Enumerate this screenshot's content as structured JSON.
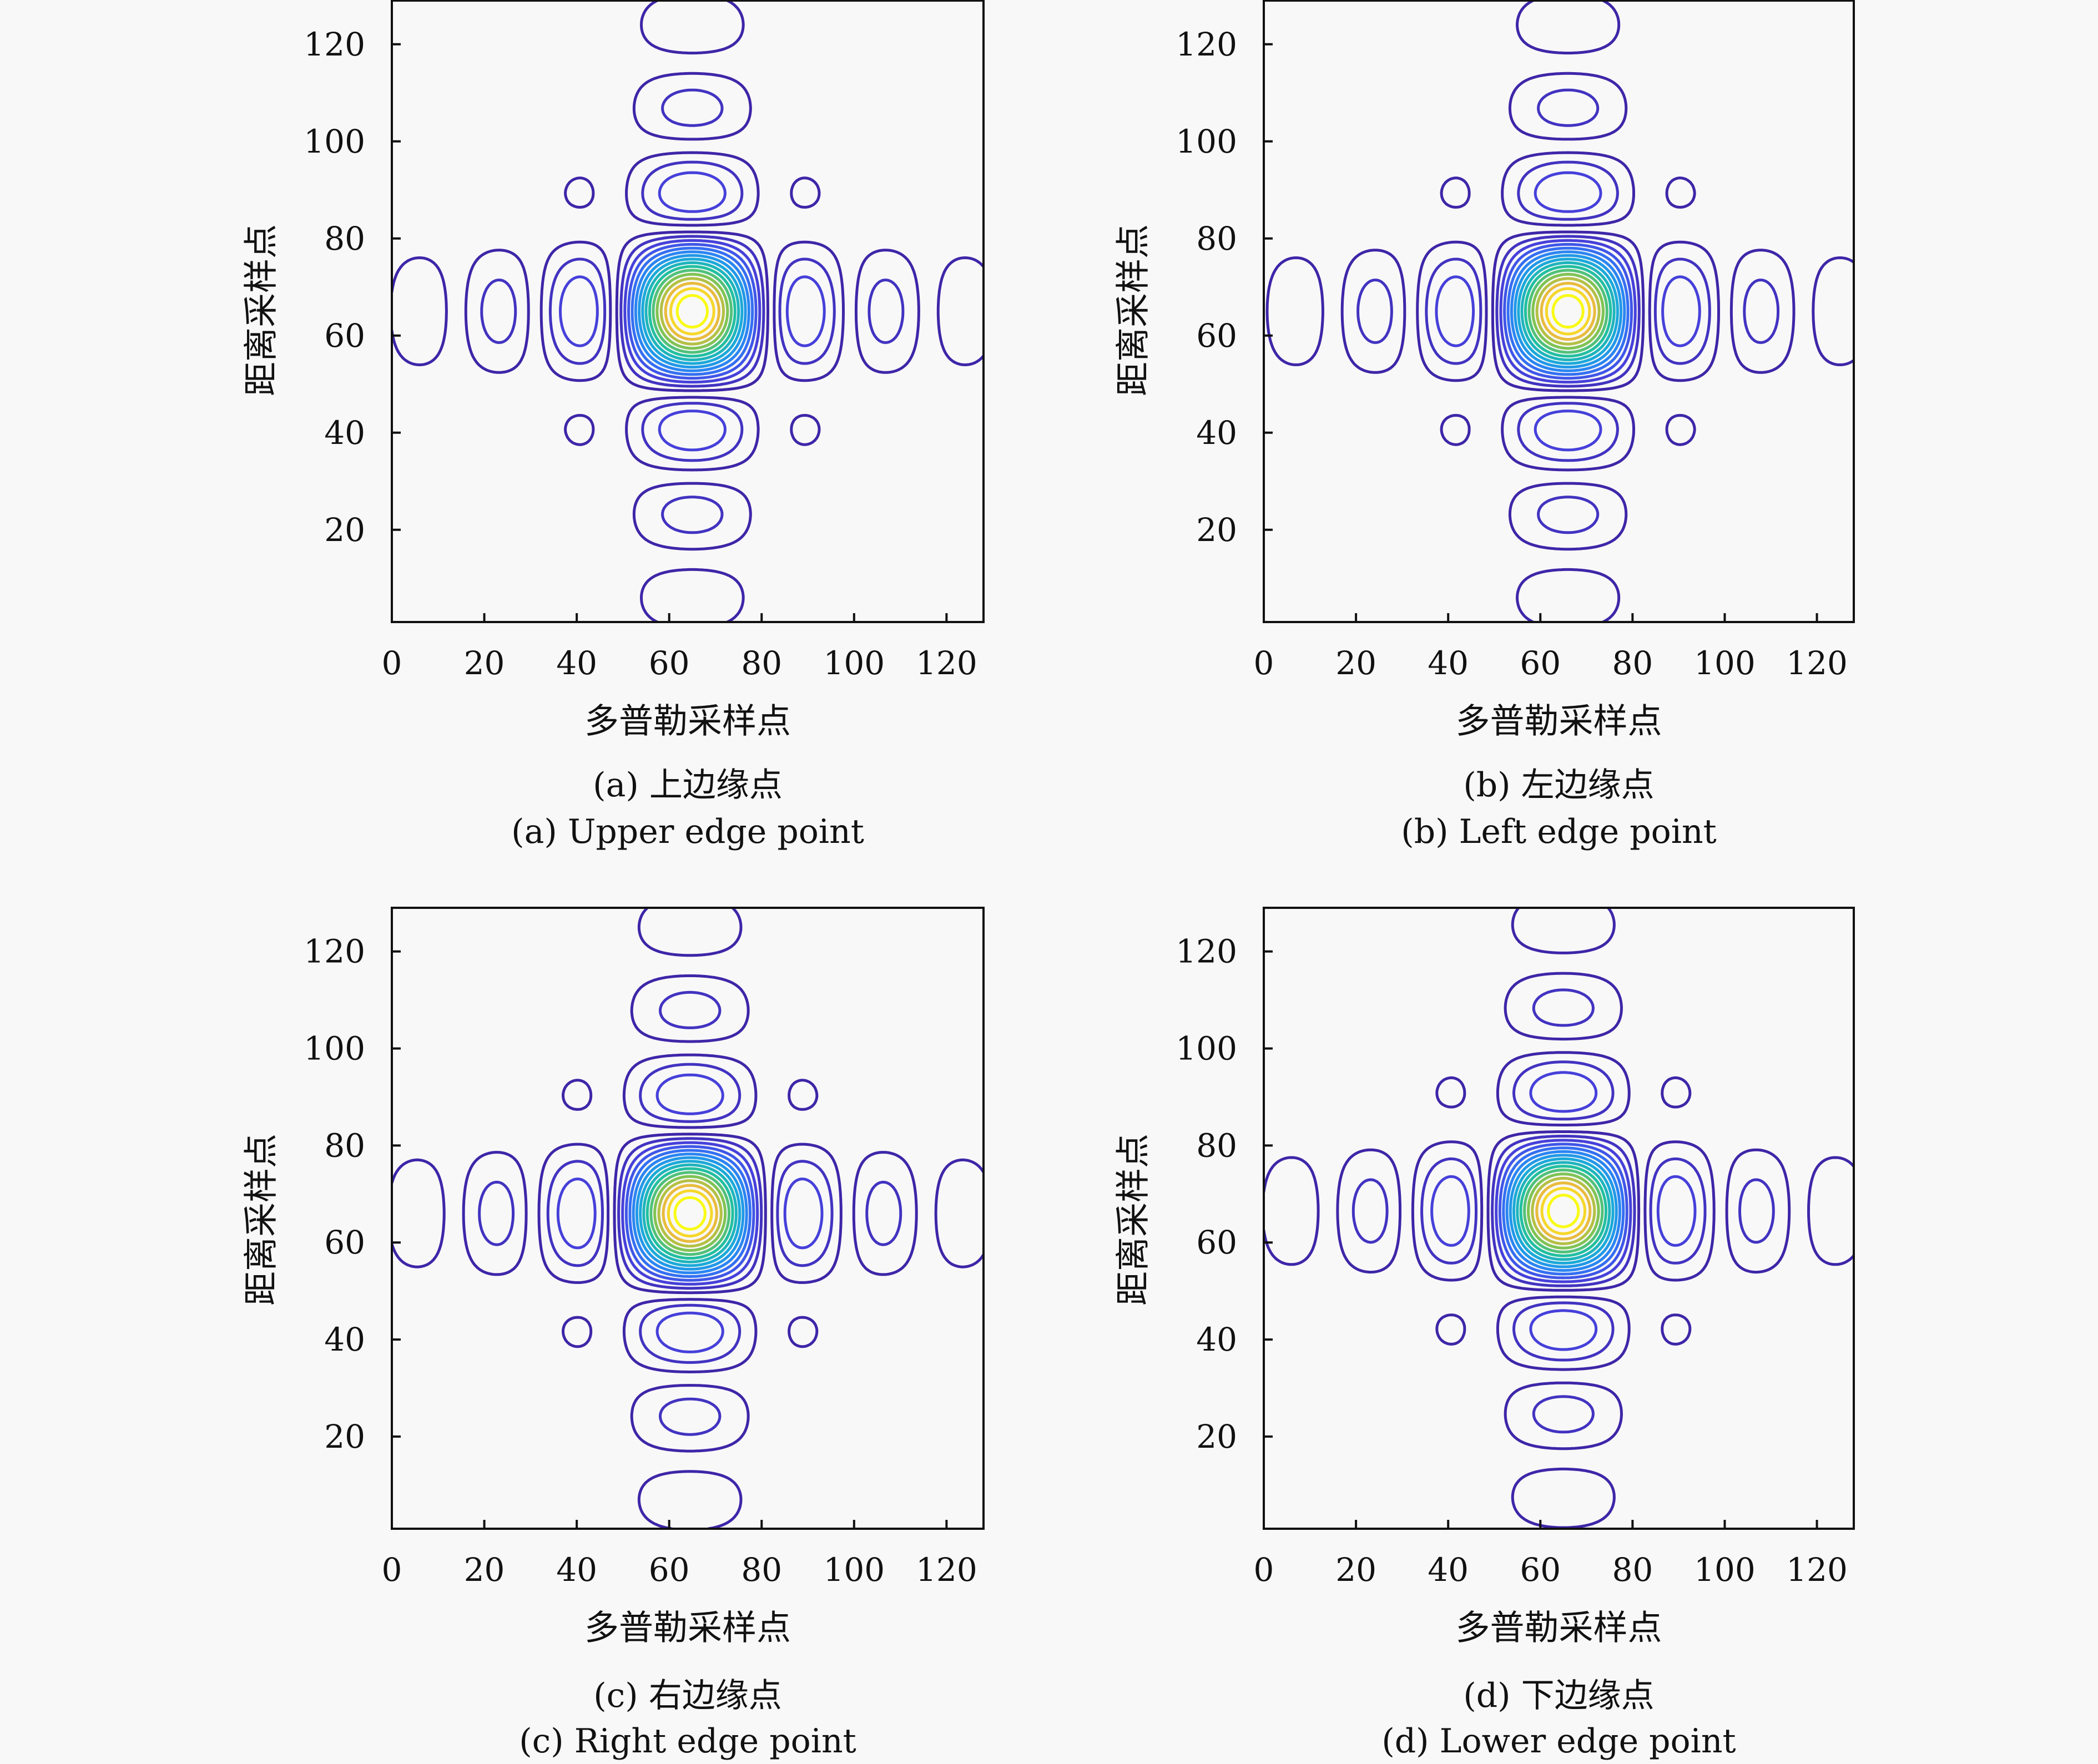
{
  "colormap": "parula",
  "chart_data": [
    {
      "type": "contour",
      "caption_zh": "(a) 上边缘点",
      "caption_en": "(a) Upper edge point",
      "xlabel": "多普勒采样点",
      "ylabel": "距离采样点",
      "xlim": [
        0,
        128
      ],
      "ylim": [
        1,
        129
      ],
      "xticks": [
        "0",
        "20",
        "40",
        "60",
        "80",
        "100",
        "120"
      ],
      "yticks": [
        "20",
        "40",
        "60",
        "80",
        "100",
        "120"
      ],
      "peak": [
        65,
        65
      ],
      "sidelobe_spacing": 17,
      "grid": false
    },
    {
      "type": "contour",
      "caption_zh": "(b) 左边缘点",
      "caption_en": "(b) Left edge point",
      "xlabel": "多普勒采样点",
      "ylabel": "距离采样点",
      "xlim": [
        0,
        128
      ],
      "ylim": [
        1,
        129
      ],
      "xticks": [
        "0",
        "20",
        "40",
        "60",
        "80",
        "100",
        "120"
      ],
      "yticks": [
        "20",
        "40",
        "60",
        "80",
        "100",
        "120"
      ],
      "peak": [
        66,
        65
      ],
      "sidelobe_spacing": 17,
      "grid": false
    },
    {
      "type": "contour",
      "caption_zh": "(c) 右边缘点",
      "caption_en": "(c) Right edge point",
      "xlabel": "多普勒采样点",
      "ylabel": "距离采样点",
      "xlim": [
        0,
        128
      ],
      "ylim": [
        1,
        129
      ],
      "xticks": [
        "0",
        "20",
        "40",
        "60",
        "80",
        "100",
        "120"
      ],
      "yticks": [
        "20",
        "40",
        "60",
        "80",
        "100",
        "120"
      ],
      "peak": [
        64.5,
        66
      ],
      "sidelobe_spacing": 17,
      "grid": false
    },
    {
      "type": "contour",
      "caption_zh": "(d) 下边缘点",
      "caption_en": "(d) Lower edge point",
      "xlabel": "多普勒采样点",
      "ylabel": "距离采样点",
      "xlim": [
        0,
        128
      ],
      "ylim": [
        1,
        129
      ],
      "xticks": [
        "0",
        "20",
        "40",
        "60",
        "80",
        "100",
        "120"
      ],
      "yticks": [
        "20",
        "40",
        "60",
        "80",
        "100",
        "120"
      ],
      "peak": [
        65,
        66.5
      ],
      "sidelobe_spacing": 17,
      "grid": false
    }
  ]
}
